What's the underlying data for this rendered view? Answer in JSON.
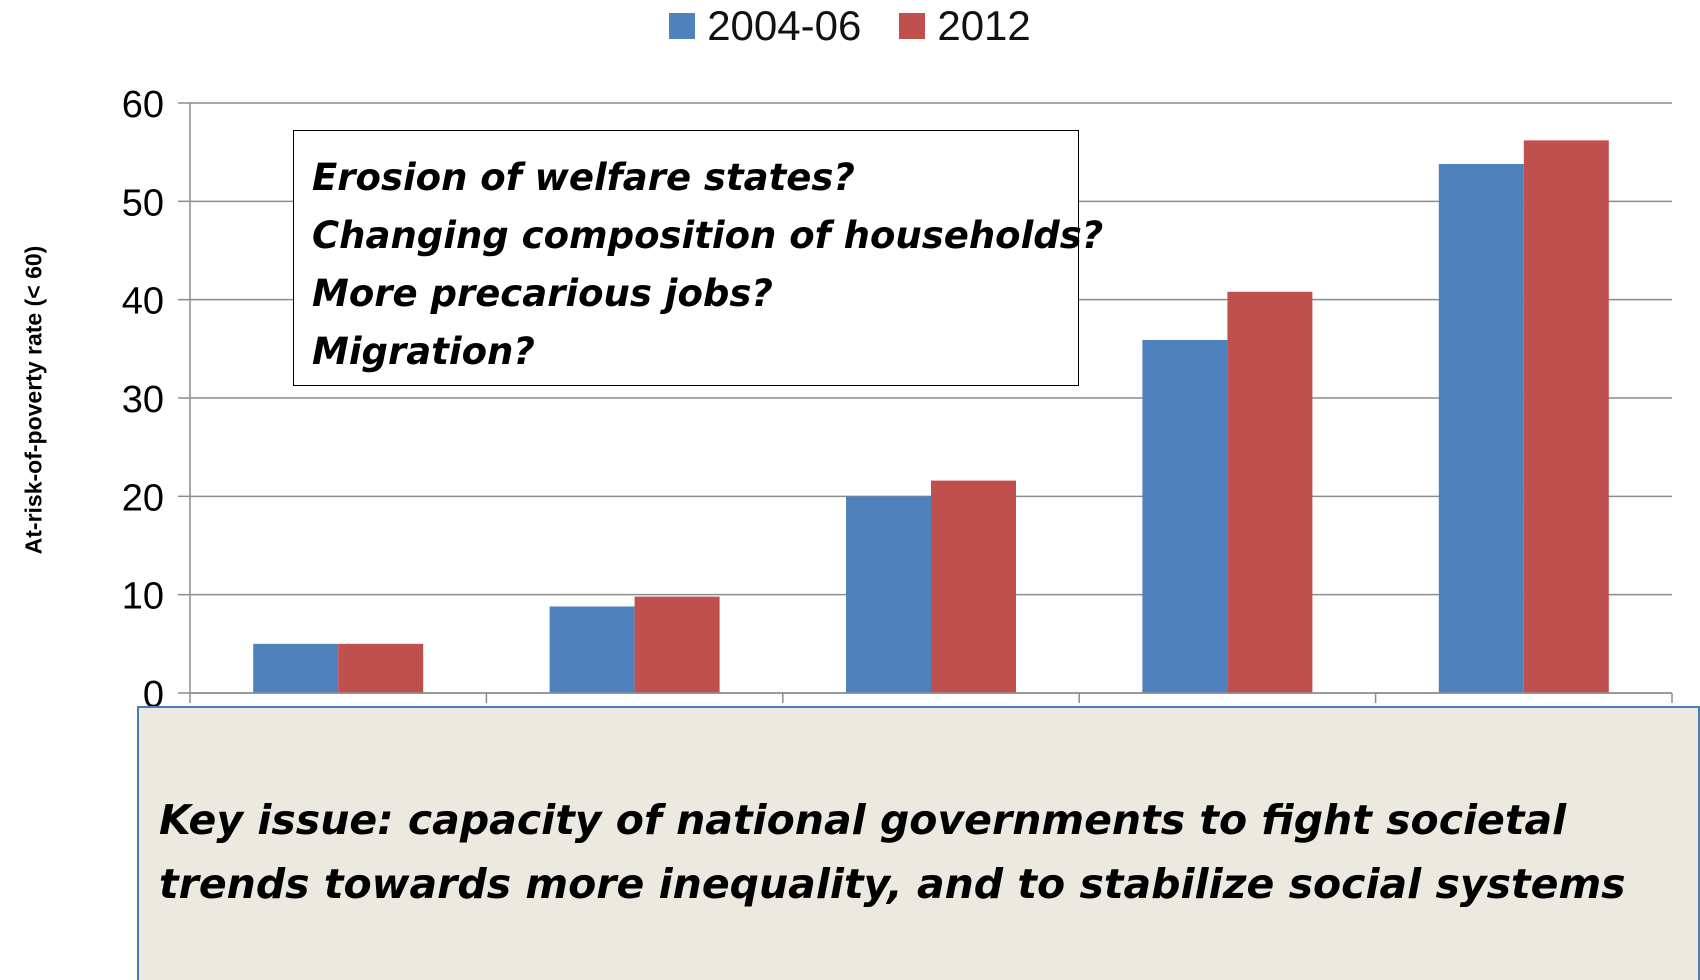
{
  "chart_data": {
    "type": "bar",
    "categories": [
      "",
      "",
      "",
      "",
      ""
    ],
    "series": [
      {
        "name": "2004-06",
        "color": "#4f81bd",
        "values": [
          5,
          8.8,
          20,
          35.9,
          53.8
        ]
      },
      {
        "name": "2012",
        "color": "#c0504d",
        "values": [
          5,
          9.8,
          21.6,
          40.8,
          56.2
        ]
      }
    ],
    "ylabel": "At-risk-of-poverty rate (< 60)",
    "yticks": [
      "0",
      "10",
      "20",
      "30",
      "40",
      "50",
      "60"
    ],
    "ylim": [
      0,
      60
    ],
    "grid": true,
    "legend_position": "top"
  },
  "annotation_box": {
    "lines": [
      "Erosion of welfare states?",
      "Changing composition of households?",
      "More precarious jobs?",
      "Migration?"
    ]
  },
  "key_issue": {
    "lines": [
      "Key issue: capacity of national governments to fight societal",
      "trends towards more inequality, and to stabilize social systems"
    ]
  }
}
